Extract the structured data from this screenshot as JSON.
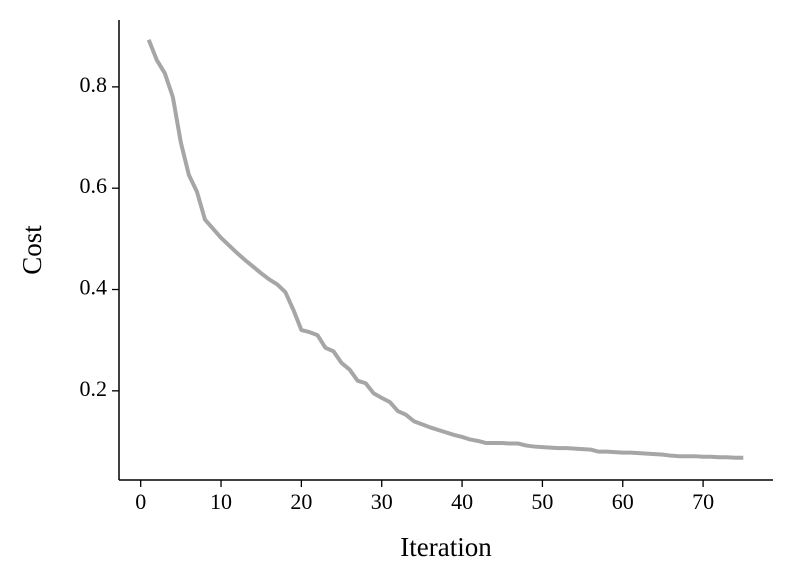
{
  "chart_data": {
    "type": "line",
    "xlabel": "Iteration",
    "ylabel": "Cost",
    "x": [
      1,
      2,
      3,
      4,
      5,
      6,
      7,
      8,
      9,
      10,
      11,
      12,
      13,
      14,
      15,
      16,
      17,
      18,
      19,
      20,
      21,
      22,
      23,
      24,
      25,
      26,
      27,
      28,
      29,
      30,
      31,
      32,
      33,
      34,
      35,
      36,
      37,
      38,
      39,
      40,
      41,
      42,
      43,
      44,
      45,
      46,
      47,
      48,
      49,
      50,
      51,
      52,
      53,
      54,
      55,
      56,
      57,
      58,
      59,
      60,
      61,
      62,
      63,
      64,
      65,
      66,
      67,
      68,
      69,
      70,
      71,
      72,
      73,
      74,
      75
    ],
    "series": [
      {
        "name": "Cost",
        "color": "#a6a6a6",
        "values": [
          0.893,
          0.853,
          0.827,
          0.78,
          0.69,
          0.626,
          0.593,
          0.538,
          0.52,
          0.502,
          0.487,
          0.472,
          0.458,
          0.445,
          0.432,
          0.42,
          0.41,
          0.395,
          0.36,
          0.32,
          0.316,
          0.31,
          0.285,
          0.278,
          0.255,
          0.242,
          0.22,
          0.215,
          0.195,
          0.186,
          0.178,
          0.16,
          0.153,
          0.14,
          0.134,
          0.128,
          0.123,
          0.118,
          0.113,
          0.109,
          0.104,
          0.101,
          0.097,
          0.097,
          0.097,
          0.096,
          0.096,
          0.092,
          0.09,
          0.089,
          0.088,
          0.087,
          0.087,
          0.086,
          0.085,
          0.084,
          0.08,
          0.08,
          0.079,
          0.078,
          0.078,
          0.077,
          0.076,
          0.075,
          0.074,
          0.072,
          0.071,
          0.071,
          0.071,
          0.07,
          0.07,
          0.069,
          0.069,
          0.068,
          0.068
        ]
      }
    ],
    "xlim": [
      -2.7,
      78.7
    ],
    "ylim": [
      0.024,
      0.932
    ],
    "xticks": [
      0,
      10,
      20,
      30,
      40,
      50,
      60,
      70
    ],
    "yticks": [
      0.2,
      0.4,
      0.6,
      0.8
    ],
    "grid": false
  }
}
